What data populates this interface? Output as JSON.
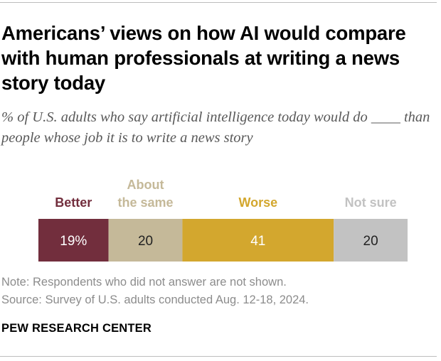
{
  "title": "Americans’ views on how AI would compare with human professionals at writing a news story today",
  "subtitle": "% of U.S. adults who say artificial intelligence today would do ____ than people whose job it is to write a news story",
  "chart_data": {
    "type": "bar",
    "orientation": "horizontal-stacked",
    "categories": [
      "Better",
      "About the same",
      "Worse",
      "Not sure"
    ],
    "values": [
      19,
      20,
      41,
      20
    ],
    "value_labels": [
      "19%",
      "20",
      "41",
      "20"
    ],
    "category_label_lines": [
      [
        "Better"
      ],
      [
        "About",
        "the same"
      ],
      [
        "Worse"
      ],
      [
        "Not sure"
      ]
    ],
    "colors": [
      "#722e3d",
      "#c5b999",
      "#d3a72e",
      "#c2c2c2"
    ],
    "label_text_colors": [
      "#ffffff",
      "#222222",
      "#ffffff",
      "#222222"
    ],
    "xlim": [
      0,
      100
    ],
    "title": "Americans’ views on how AI would compare with human professionals at writing a news story today",
    "xlabel": "",
    "ylabel": ""
  },
  "notes": {
    "note": "Note: Respondents who did not answer are not shown.",
    "source": "Source: Survey of U.S. adults conducted Aug. 12-18, 2024."
  },
  "brand": "PEW RESEARCH CENTER"
}
